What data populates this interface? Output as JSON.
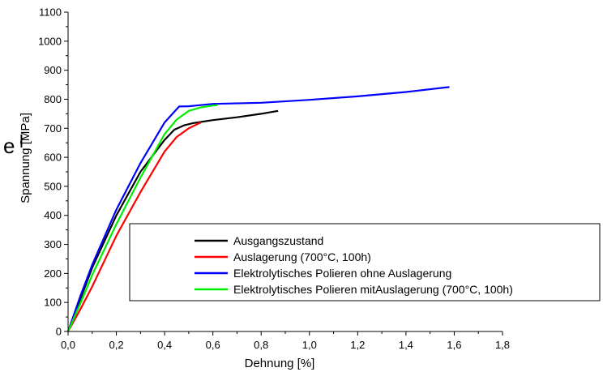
{
  "chart_data": {
    "type": "line",
    "title": "",
    "xlabel": "Dehnung [%]",
    "ylabel": "Spannung [MPa]",
    "xlim": [
      0,
      1.8
    ],
    "ylim": [
      0,
      1100
    ],
    "x_ticks": [
      0,
      0.2,
      0.4,
      0.6,
      0.8,
      1.0,
      1.2,
      1.4,
      1.6,
      1.8
    ],
    "x_tick_labels": [
      "0,0",
      "0,2",
      "0,4",
      "0,6",
      "0,8",
      "1,0",
      "1,2",
      "1,4",
      "1,6",
      "1,8"
    ],
    "y_ticks": [
      0,
      100,
      200,
      300,
      400,
      500,
      600,
      700,
      800,
      900,
      1000,
      1100
    ],
    "y_tick_labels": [
      "0",
      "100",
      "200",
      "300",
      "400",
      "500",
      "600",
      "700",
      "800",
      "900",
      "1000",
      "1100"
    ],
    "grid": false,
    "legend_position": "bottom-right",
    "series": [
      {
        "name": "Ausgangszustand",
        "color": "#000000",
        "x": [
          0.0,
          0.05,
          0.1,
          0.2,
          0.3,
          0.4,
          0.44,
          0.48,
          0.52,
          0.6,
          0.7,
          0.8,
          0.87
        ],
        "y": [
          0,
          110,
          220,
          400,
          550,
          660,
          695,
          710,
          718,
          728,
          738,
          750,
          760
        ]
      },
      {
        "name": "Auslagerung (700°C, 100h)",
        "color": "#ff0000",
        "x": [
          0.0,
          0.05,
          0.1,
          0.2,
          0.3,
          0.4,
          0.45,
          0.5,
          0.55
        ],
        "y": [
          0,
          75,
          155,
          330,
          480,
          620,
          670,
          700,
          720
        ]
      },
      {
        "name": "Elektrolytisches Polieren ohne Auslagerung",
        "color": "#0000ff",
        "x": [
          0.0,
          0.05,
          0.1,
          0.2,
          0.3,
          0.4,
          0.46,
          0.5,
          0.6,
          0.8,
          1.0,
          1.2,
          1.4,
          1.58
        ],
        "y": [
          0,
          120,
          230,
          420,
          580,
          720,
          775,
          776,
          784,
          788,
          798,
          810,
          825,
          842
        ]
      },
      {
        "name": "Elektrolytisches Polieren mitAuslagerung (700°C, 100h)",
        "color": "#00ee00",
        "x": [
          0.0,
          0.05,
          0.1,
          0.2,
          0.3,
          0.4,
          0.45,
          0.5,
          0.55,
          0.6,
          0.62
        ],
        "y": [
          0,
          95,
          195,
          370,
          530,
          680,
          730,
          760,
          772,
          778,
          780
        ]
      }
    ],
    "annotations": [
      "e",
      "l"
    ]
  }
}
